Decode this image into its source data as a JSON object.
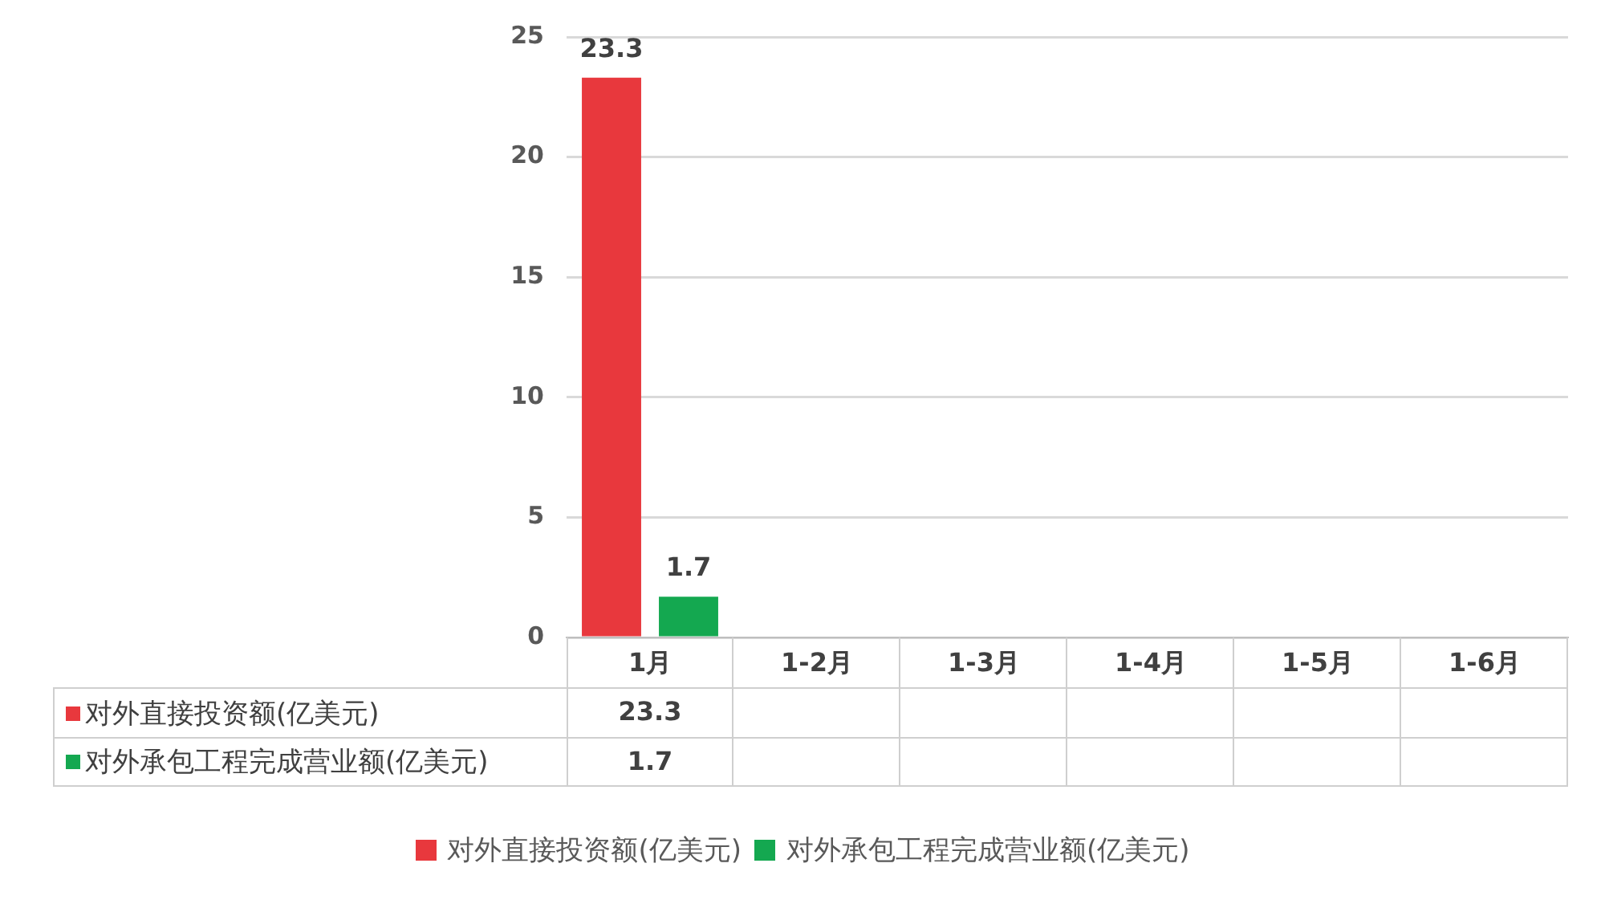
{
  "chart_data": {
    "type": "bar",
    "categories": [
      "1月",
      "1-2月",
      "1-3月",
      "1-4月",
      "1-5月",
      "1-6月"
    ],
    "series": [
      {
        "name": "对外直接投资额(亿美元)",
        "color": "#e8383d",
        "values": [
          23.3,
          null,
          null,
          null,
          null,
          null
        ]
      },
      {
        "name": "对外承包工程完成营业额(亿美元)",
        "color": "#14a850",
        "values": [
          1.7,
          null,
          null,
          null,
          null,
          null
        ]
      }
    ],
    "ylim": [
      0,
      25
    ],
    "yticks": [
      0,
      5,
      10,
      15,
      20,
      25
    ],
    "grid": "y",
    "legend": "bottom",
    "data_labels": true,
    "annotations": [
      "23.3",
      "1.7"
    ]
  }
}
